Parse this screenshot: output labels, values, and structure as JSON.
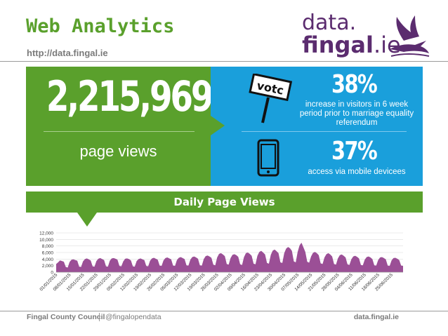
{
  "header": {
    "title": "Web Analytics",
    "url": "http://data.fingal.ie",
    "logo_data": "data.",
    "logo_fingal": "fingal",
    "logo_ie": ".ie"
  },
  "stats": {
    "page_views_value": "2,215,969",
    "page_views_label": "page views",
    "visitors_increase_pct": "38%",
    "visitors_increase_text": "increase in visitors in 6 week period prior to marriage equality referendum",
    "mobile_pct": "37%",
    "mobile_text": "access via mobile devicees",
    "vote_sign_text": "votc"
  },
  "colors": {
    "green": "#5aa02c",
    "blue": "#1a9fdb",
    "purple": "#9b4f96",
    "logo_purple": "#5b2c6f"
  },
  "icons": {
    "vote": "vote-sign-icon",
    "phone": "mobile-phone-icon",
    "logo": "bird-logo-icon"
  },
  "chart_data": {
    "type": "area",
    "title": "Daily Page Views",
    "xlabel": "",
    "ylabel": "",
    "ylim": [
      0,
      12000
    ],
    "yticks": [
      "0",
      "2,000",
      "4,000",
      "6,000",
      "8,000",
      "10,000",
      "12,000"
    ],
    "ytick_values": [
      0,
      2000,
      4000,
      6000,
      8000,
      10000,
      12000
    ],
    "xtick_labels": [
      "01/01/2015",
      "08/01/2015",
      "15/01/2015",
      "22/01/2015",
      "29/01/2015",
      "05/02/2015",
      "12/02/2015",
      "19/02/2015",
      "26/02/2015",
      "05/03/2015",
      "12/03/2015",
      "19/03/2015",
      "26/03/2015",
      "02/04/2015",
      "09/04/2015",
      "16/04/2015",
      "23/04/2015",
      "30/04/2015",
      "07/05/2015",
      "14/05/2015",
      "21/05/2015",
      "28/05/2015",
      "04/06/2015",
      "11/06/2015",
      "18/06/2015",
      "25/06/2015"
    ],
    "weekly_values": [
      [
        2500,
        3000,
        3600,
        3400,
        3200,
        1600,
        1400
      ],
      [
        3100,
        3800,
        3900,
        3700,
        3500,
        1700,
        1600
      ],
      [
        3300,
        4000,
        4200,
        3900,
        3600,
        1800,
        1700
      ],
      [
        3400,
        4100,
        4300,
        4000,
        3700,
        1800,
        1700
      ],
      [
        3500,
        4200,
        4300,
        4100,
        3800,
        1900,
        1800
      ],
      [
        3300,
        4100,
        4200,
        4000,
        3600,
        1800,
        1700
      ],
      [
        3400,
        4000,
        4200,
        3900,
        3700,
        1900,
        1800
      ],
      [
        3500,
        4200,
        4400,
        4100,
        3800,
        2000,
        1900
      ],
      [
        3600,
        4300,
        4500,
        4200,
        3900,
        2000,
        1900
      ],
      [
        3700,
        4400,
        4600,
        4300,
        4000,
        2100,
        2000
      ],
      [
        3800,
        4600,
        4800,
        4500,
        4100,
        2100,
        2000
      ],
      [
        4000,
        4900,
        5100,
        4800,
        4400,
        2300,
        2100
      ],
      [
        4500,
        5600,
        5800,
        5400,
        4900,
        2500,
        2300
      ],
      [
        4300,
        5300,
        5500,
        5200,
        4700,
        2400,
        2200
      ],
      [
        4600,
        5800,
        6000,
        5600,
        5000,
        2600,
        2400
      ],
      [
        5000,
        6200,
        6500,
        6000,
        5400,
        2800,
        2600
      ],
      [
        5300,
        6600,
        6900,
        6400,
        5800,
        3000,
        2800
      ],
      [
        5800,
        7200,
        7700,
        7300,
        6500,
        3300,
        3000
      ],
      [
        6200,
        8200,
        9000,
        7600,
        6200,
        3200,
        2900
      ],
      [
        4800,
        5900,
        6200,
        5800,
        5200,
        2700,
        2500
      ],
      [
        4500,
        5500,
        5800,
        5400,
        4800,
        2500,
        2300
      ],
      [
        4200,
        5200,
        5400,
        5000,
        4500,
        2400,
        2200
      ],
      [
        3900,
        4800,
        5000,
        4700,
        4200,
        2200,
        2100
      ],
      [
        3800,
        4600,
        4800,
        4500,
        4000,
        2100,
        2000
      ],
      [
        3700,
        4500,
        4600,
        4300,
        3900,
        2000,
        1900
      ],
      [
        3600,
        4300,
        4400,
        4100,
        3700,
        2000,
        1900
      ]
    ]
  },
  "footer": {
    "org": "Fingal County Council",
    "twitter": "@fingalopendata",
    "site": "data.fingal.ie"
  }
}
